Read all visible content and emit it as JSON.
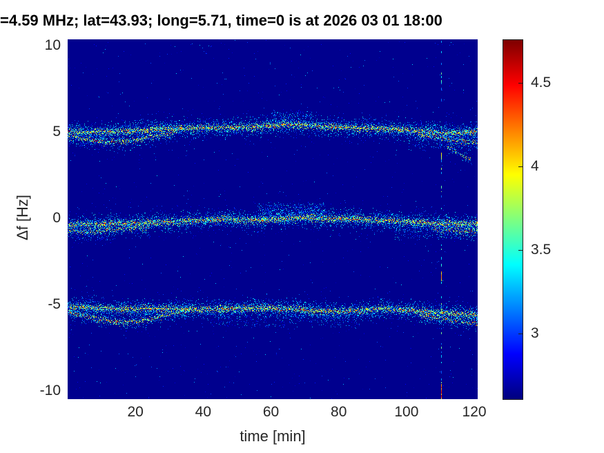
{
  "title": "=4.59 MHz;  lat=43.93; long=5.71, time=0 is at 2026 03 01 18:00",
  "chart_data": {
    "type": "heatmap",
    "title": "=4.59 MHz;  lat=43.93; long=5.71, time=0 is at 2026 03 01 18:00",
    "xlabel": "time [min]",
    "ylabel": "Δf [Hz]",
    "xlim": [
      0,
      121
    ],
    "ylim": [
      -10.5,
      10.35
    ],
    "xticks": [
      20,
      40,
      60,
      80,
      100,
      120
    ],
    "yticks": [
      10,
      5,
      0,
      -5,
      -10
    ],
    "grid": false,
    "legend": "none",
    "colormap": "jet",
    "background_value": 2.64,
    "colorbar": {
      "position": "right",
      "range": [
        2.61,
        4.76
      ],
      "ticks": [
        3,
        3.5,
        4,
        4.5
      ]
    },
    "description": "HF Doppler spectrogram: three speckled Doppler traces near +5, 0 and -5 Hz over 121 minutes, jet colormap on dark blue background, vertical dashed interference line near t=110 min",
    "bands": [
      {
        "name": "upper-main",
        "strength": 1.0,
        "spread": 0.17,
        "centerline": [
          [
            0,
            5.05
          ],
          [
            6,
            5.0
          ],
          [
            12,
            5.0
          ],
          [
            18,
            5.05
          ],
          [
            24,
            5.1
          ],
          [
            30,
            5.2
          ],
          [
            36,
            5.2
          ],
          [
            42,
            5.25
          ],
          [
            48,
            5.25
          ],
          [
            54,
            5.3
          ],
          [
            60,
            5.35
          ],
          [
            65,
            5.45
          ],
          [
            68,
            5.4
          ],
          [
            72,
            5.35
          ],
          [
            78,
            5.3
          ],
          [
            84,
            5.25
          ],
          [
            90,
            5.2
          ],
          [
            96,
            5.15
          ],
          [
            102,
            5.05
          ],
          [
            108,
            5.0
          ],
          [
            112,
            4.95
          ],
          [
            116,
            4.95
          ],
          [
            121,
            5.0
          ]
        ]
      },
      {
        "name": "upper-secondary-left",
        "strength": 0.5,
        "spread": 0.15,
        "centerline": [
          [
            0,
            4.8
          ],
          [
            4,
            4.65
          ],
          [
            8,
            4.5
          ],
          [
            12,
            4.42
          ],
          [
            16,
            4.45
          ],
          [
            20,
            4.55
          ],
          [
            24,
            4.7
          ],
          [
            28,
            4.85
          ],
          [
            32,
            5.0
          ]
        ]
      },
      {
        "name": "upper-secondary-right",
        "strength": 0.45,
        "spread": 0.15,
        "centerline": [
          [
            104,
            4.85
          ],
          [
            108,
            4.7
          ],
          [
            112,
            4.55
          ],
          [
            116,
            4.45
          ],
          [
            121,
            4.35
          ]
        ]
      },
      {
        "name": "middle-main",
        "strength": 1.0,
        "spread": 0.17,
        "centerline": [
          [
            0,
            -0.38
          ],
          [
            8,
            -0.35
          ],
          [
            16,
            -0.3
          ],
          [
            24,
            -0.25
          ],
          [
            32,
            -0.2
          ],
          [
            40,
            -0.12
          ],
          [
            46,
            -0.05
          ],
          [
            50,
            -0.08
          ],
          [
            56,
            -0.12
          ],
          [
            62,
            -0.05
          ],
          [
            68,
            0.02
          ],
          [
            74,
            0.0
          ],
          [
            80,
            -0.02
          ],
          [
            86,
            -0.05
          ],
          [
            92,
            -0.12
          ],
          [
            98,
            -0.18
          ],
          [
            104,
            -0.25
          ],
          [
            110,
            -0.3
          ],
          [
            116,
            -0.32
          ],
          [
            121,
            -0.3
          ]
        ]
      },
      {
        "name": "middle-secondary-left",
        "strength": 0.4,
        "spread": 0.15,
        "centerline": [
          [
            0,
            -0.75
          ],
          [
            6,
            -0.8
          ],
          [
            12,
            -0.7
          ],
          [
            18,
            -0.6
          ],
          [
            24,
            -0.55
          ]
        ]
      },
      {
        "name": "middle-secondary-right",
        "strength": 0.35,
        "spread": 0.18,
        "centerline": [
          [
            108,
            -0.6
          ],
          [
            114,
            -0.7
          ],
          [
            121,
            -0.75
          ]
        ]
      },
      {
        "name": "lower-main",
        "strength": 1.0,
        "spread": 0.17,
        "centerline": [
          [
            0,
            -5.15
          ],
          [
            8,
            -5.2
          ],
          [
            16,
            -5.25
          ],
          [
            24,
            -5.25
          ],
          [
            32,
            -5.25
          ],
          [
            40,
            -5.3
          ],
          [
            48,
            -5.25
          ],
          [
            56,
            -5.2
          ],
          [
            64,
            -5.25
          ],
          [
            72,
            -5.35
          ],
          [
            80,
            -5.4
          ],
          [
            86,
            -5.35
          ],
          [
            92,
            -5.25
          ],
          [
            98,
            -5.3
          ],
          [
            104,
            -5.4
          ],
          [
            110,
            -5.5
          ],
          [
            116,
            -5.55
          ],
          [
            121,
            -5.6
          ]
        ]
      },
      {
        "name": "lower-secondary-left",
        "strength": 0.5,
        "spread": 0.15,
        "centerline": [
          [
            0,
            -5.45
          ],
          [
            4,
            -5.6
          ],
          [
            8,
            -5.8
          ],
          [
            12,
            -5.95
          ],
          [
            16,
            -6.05
          ],
          [
            20,
            -6.0
          ],
          [
            24,
            -5.85
          ],
          [
            28,
            -5.65
          ],
          [
            32,
            -5.45
          ],
          [
            36,
            -5.3
          ]
        ]
      },
      {
        "name": "lower-secondary-right",
        "strength": 0.4,
        "spread": 0.15,
        "centerline": [
          [
            104,
            -5.65
          ],
          [
            108,
            -5.75
          ],
          [
            112,
            -5.9
          ],
          [
            116,
            -6.0
          ],
          [
            121,
            -6.1
          ]
        ]
      },
      {
        "name": "right-diagonal-wisp",
        "strength": 0.22,
        "spread": 0.1,
        "centerline": [
          [
            112,
            4.1
          ],
          [
            116,
            3.7
          ],
          [
            119,
            3.35
          ]
        ]
      }
    ],
    "clouds": [
      {
        "t0": 56,
        "t1": 76,
        "f0": 0.0,
        "f1": 0.85,
        "count": 420,
        "v0": 2.9,
        "v1": 3.6
      },
      {
        "t0": 60,
        "t1": 72,
        "f0": 5.5,
        "f1": 6.2,
        "count": 150,
        "v0": 2.9,
        "v1": 3.5
      },
      {
        "t0": 42,
        "t1": 86,
        "f0": -6.3,
        "f1": -5.55,
        "count": 260,
        "v0": 2.85,
        "v1": 3.4
      },
      {
        "t0": 96,
        "t1": 121,
        "f0": -1.2,
        "f1": -0.4,
        "count": 210,
        "v0": 2.9,
        "v1": 3.5
      },
      {
        "t0": 100,
        "t1": 121,
        "f0": 4.0,
        "f1": 4.8,
        "count": 150,
        "v0": 2.9,
        "v1": 3.4
      },
      {
        "t0": 0,
        "t1": 14,
        "f0": -1.3,
        "f1": -0.8,
        "count": 70,
        "v0": 2.85,
        "v1": 3.3
      },
      {
        "t0": 0,
        "t1": 12,
        "f0": 4.1,
        "f1": 4.5,
        "count": 60,
        "v0": 2.85,
        "v1": 3.3
      }
    ],
    "artifact": {
      "t": 110.2,
      "dash_value_min": 3.05,
      "dash_value_max": 3.8,
      "bright_segments": [
        {
          "f0": -10.45,
          "f1": -9.6,
          "value": 4.55
        },
        {
          "f0": -3.6,
          "f1": -3.1,
          "value": 4.3
        },
        {
          "f0": 3.4,
          "f1": 3.8,
          "value": 4.15
        },
        {
          "f0": 7.8,
          "f1": 8.0,
          "value": 3.7
        }
      ]
    },
    "noise": {
      "count": 1100,
      "v_min": 2.72,
      "v_max": 3.35
    }
  }
}
